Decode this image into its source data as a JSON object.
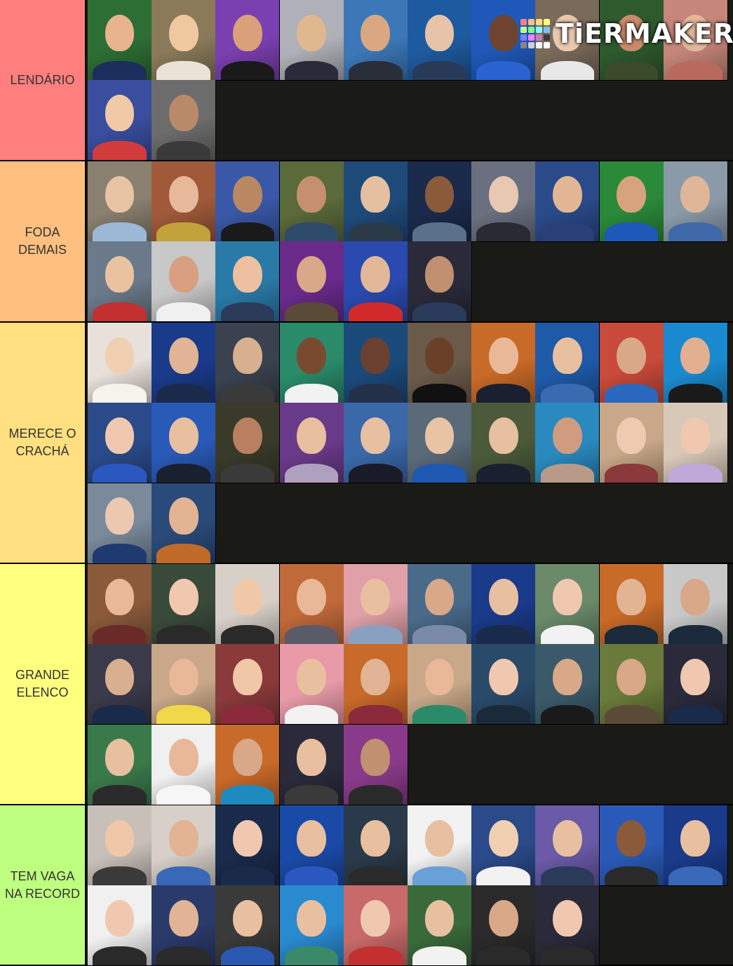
{
  "brand": {
    "logo_text": "TiERMAKER",
    "logo_colors": [
      "#ff7f7f",
      "#ffbf7f",
      "#ffdf7f",
      "#ffff7f",
      "#bfff7f",
      "#7fff7f",
      "#7fffff",
      "#7fbfff",
      "#7f7fff",
      "#ff7fff",
      "#bf7fbf",
      "#3b3b3b",
      "#858585",
      "#cfcfcf",
      "#f7f7f7",
      "#ffffff"
    ]
  },
  "tiers": [
    {
      "label": "LENDÁRIO",
      "color": "#ff7f7f",
      "tiles": [
        [
          "#2d6e35",
          "#e8b48f",
          "#1c2e5c"
        ],
        [
          "#8a7a5a",
          "#f0c8a0",
          "#e9e2d6"
        ],
        [
          "#7a3fb0",
          "#d9a07a",
          "#1a1a1a"
        ],
        [
          "#b0b0b8",
          "#e0b890",
          "#2a2a38"
        ],
        [
          "#3c78b8",
          "#d9a882",
          "#2a2e38"
        ],
        [
          "#1e5aa0",
          "#e7c4a8",
          "#283a58"
        ],
        [
          "#1f58b8",
          "#6e4330",
          "#2a62d0"
        ],
        [
          "#7a6a5a",
          "#e9c9ae",
          "#e8e8e8"
        ],
        [
          "#2e5a2e",
          "#c98a6a",
          "#3a4a2a"
        ],
        [
          "#c6867a",
          "#e3b89a",
          "#b86a5e"
        ],
        [
          "#3a4ea0",
          "#f0c9a6",
          "#d23b3b"
        ],
        [
          "#6c6c6c",
          "#b88a6a",
          "#3a3a3a"
        ]
      ]
    },
    {
      "label": "FODA\nDEMAIS",
      "color": "#ffbf7f",
      "tiles": [
        [
          "#8a8070",
          "#e8c4a4",
          "#9bb8d6"
        ],
        [
          "#a05a3a",
          "#e7b89a",
          "#c2a23a"
        ],
        [
          "#3a58a8",
          "#b98862",
          "#1a1a1a"
        ],
        [
          "#5a6a3a",
          "#c69070",
          "#2e4a6a"
        ],
        [
          "#1e4a7a",
          "#e5c0a0",
          "#2a3a48"
        ],
        [
          "#1a2a4a",
          "#8a5a3a",
          "#5a6f8a"
        ],
        [
          "#6a7080",
          "#e8c8b0",
          "#2a2a32"
        ],
        [
          "#2a4a8a",
          "#e2b694",
          "#2a3f78"
        ],
        [
          "#2a8a3a",
          "#d7a37e",
          "#1e58b8"
        ],
        [
          "#8a9aa8",
          "#e0b698",
          "#3e68a8"
        ],
        [
          "#6a7a8a",
          "#e9c2a0",
          "#c23030"
        ],
        [
          "#c8c8c8",
          "#d8a080",
          "#f0f0f0"
        ],
        [
          "#2a7aa8",
          "#ecc0a0",
          "#2a3a58"
        ],
        [
          "#6a2a8a",
          "#d8a888",
          "#5a4a38"
        ],
        [
          "#2a4ab0",
          "#e2b898",
          "#d22a2a"
        ],
        [
          "#2a2a3a",
          "#c09070",
          "#2a3a5a"
        ]
      ]
    },
    {
      "label": "MERECE O\nCRACHÁ",
      "color": "#ffdf7f",
      "tiles": [
        [
          "#e8e0da",
          "#f0d0b0",
          "#f6f2ec"
        ],
        [
          "#1a3a8a",
          "#e0b494",
          "#1a2a4a"
        ],
        [
          "#3a4250",
          "#d8b090",
          "#3a3a3a"
        ],
        [
          "#2a8a6a",
          "#7a4a30",
          "#f2f2f2"
        ],
        [
          "#1a4a7a",
          "#6a4030",
          "#23304a"
        ],
        [
          "#6a5a4a",
          "#6a4028",
          "#111111"
        ],
        [
          "#c86a28",
          "#e8b898",
          "#1a2030"
        ],
        [
          "#1e5aa8",
          "#e8c0a0",
          "#3a6ab0"
        ],
        [
          "#c84a3a",
          "#d8a888",
          "#2a68c0"
        ],
        [
          "#1a8ad0",
          "#e2b090",
          "#1a1a1a"
        ],
        [
          "#2a4a8a",
          "#f0c8b0",
          "#2a58c0"
        ],
        [
          "#2a5ab8",
          "#e8c0a0",
          "#1a2030"
        ],
        [
          "#3a3a2a",
          "#b88060",
          "#3a3a3a"
        ],
        [
          "#6a3a8a",
          "#e8c0a0",
          "#b0a0c0"
        ],
        [
          "#3a68a8",
          "#e6c0a0",
          "#1a1a28"
        ],
        [
          "#5a6a78",
          "#e8c4a4",
          "#1e58b0"
        ],
        [
          "#4a5a3a",
          "#e6c0a0",
          "#1a2030"
        ],
        [
          "#2a8ac0",
          "#d09c80",
          "#b89a88"
        ],
        [
          "#c8a888",
          "#f0cab0",
          "#8a3a3a"
        ],
        [
          "#d8c8b8",
          "#f0c8b0",
          "#c0a8d8"
        ],
        [
          "#7a8a9a",
          "#ecc8b0",
          "#1e3a70"
        ],
        [
          "#2a4a7a",
          "#e2b494",
          "#c06a2a"
        ]
      ]
    },
    {
      "label": "GRANDE\nELENCO",
      "color": "#ffff7f",
      "tiles": [
        [
          "#8a5a3a",
          "#e8b898",
          "#6a2a2a"
        ],
        [
          "#3a4a3a",
          "#f0c8b0",
          "#2a2a2a"
        ],
        [
          "#d8d0c8",
          "#f0c8a8",
          "#2a2a2a"
        ],
        [
          "#c06a3a",
          "#e8b898",
          "#5a5a68"
        ],
        [
          "#e0a0a8",
          "#e8c0a0",
          "#8aa0c0"
        ],
        [
          "#4a6a8a",
          "#d8a888",
          "#7a8aa8"
        ],
        [
          "#1a3a8a",
          "#e8c0a0",
          "#1a2a4a"
        ],
        [
          "#6a8a6a",
          "#f0c8b0",
          "#f2f2f2"
        ],
        [
          "#c86a28",
          "#e2b494",
          "#1a2a3a"
        ],
        [
          "#c8c8c8",
          "#d8a888",
          "#1a2a3a"
        ],
        [
          "#3a3a4a",
          "#d8b090",
          "#1a2a4a"
        ],
        [
          "#c8a888",
          "#e8b898",
          "#f0d848"
        ],
        [
          "#8a3a3a",
          "#f0c8a8",
          "#8a2a3a"
        ],
        [
          "#e89aa8",
          "#e8c0a0",
          "#f2f2f2"
        ],
        [
          "#c86a2a",
          "#e0b494",
          "#8a2a3a"
        ],
        [
          "#c8a888",
          "#e8b898",
          "#2a8a6a"
        ],
        [
          "#2a4a6a",
          "#f0c8b0",
          "#1a2a3a"
        ],
        [
          "#3a5a6a",
          "#d8a888",
          "#1a1a1a"
        ],
        [
          "#6a7a3a",
          "#d8a888",
          "#5a4a38"
        ],
        [
          "#2a2a3a",
          "#f0c8b0",
          "#1a2a4a"
        ],
        [
          "#3a7a4a",
          "#e8c0a0",
          "#2a2a2a"
        ],
        [
          "#f0f0f0",
          "#e8b898",
          "#f6f6f6"
        ],
        [
          "#c86a2a",
          "#d8a888",
          "#1e8ac0"
        ],
        [
          "#2a2a3a",
          "#e8c0a0",
          "#3a3a3a"
        ],
        [
          "#8a3a8a",
          "#c09070",
          "#2a2a2a"
        ]
      ]
    },
    {
      "label": "TEM VAGA\nNA RECORD",
      "color": "#bfff7f",
      "tiles": [
        [
          "#c8c0b8",
          "#f0c8a8",
          "#3a3a3a"
        ],
        [
          "#d8d0c8",
          "#e2b494",
          "#3a68b8"
        ],
        [
          "#1a2a4a",
          "#f0c8b0",
          "#1a2a4a"
        ],
        [
          "#1a4aa8",
          "#e8c0a0",
          "#2a58c0"
        ],
        [
          "#2a3a4a",
          "#e8c0a0",
          "#2a2a2a"
        ],
        [
          "#f2f2f2",
          "#e8c0a0",
          "#6aa0d8"
        ],
        [
          "#2a4a8a",
          "#f0d0b0",
          "#f2f2f2"
        ],
        [
          "#6a5aa8",
          "#e8c0a0",
          "#2a3a58"
        ],
        [
          "#2a5ab8",
          "#8a5a3a",
          "#2a2a2a"
        ],
        [
          "#1a3a8a",
          "#e8c0a0",
          "#3a68b8"
        ],
        [
          "#f0f0f0",
          "#f0c8b0",
          "#2a2a2a"
        ],
        [
          "#2a3a6a",
          "#e0b494",
          "#2a2a2a"
        ],
        [
          "#3a3a3a",
          "#e8c0a0",
          "#2a58b0"
        ],
        [
          "#2a8ad0",
          "#e8c0a0",
          "#3a8a6a"
        ],
        [
          "#c86a6a",
          "#f0c8b0",
          "#c23030"
        ],
        [
          "#3a6a3a",
          "#e8c0a0",
          "#f2f2f2"
        ],
        [
          "#2a2a2a",
          "#d8a888",
          "#2a2a2a"
        ],
        [
          "#2a2a3a",
          "#f0c8b0",
          "#2a2a2a"
        ]
      ]
    }
  ]
}
